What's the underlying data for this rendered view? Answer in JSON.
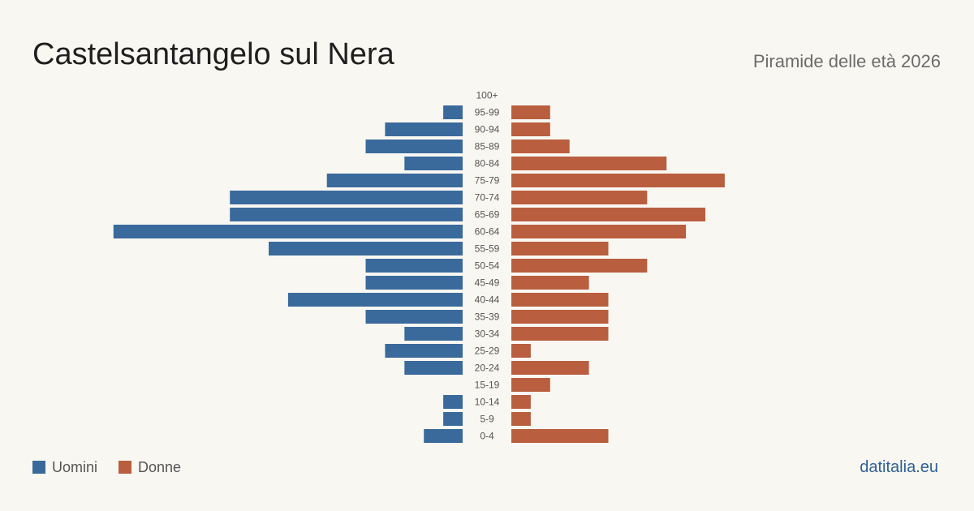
{
  "header": {
    "title": "Castelsantangelo  sul Nera",
    "subtitle": "Piramide delle età 2026"
  },
  "legend": {
    "men_label": "Uomini",
    "women_label": "Donne"
  },
  "source": {
    "label": "datitalia.eu"
  },
  "colors": {
    "men": "#3a6a9c",
    "women": "#b95e3e",
    "background": "#f9f7f2"
  },
  "chart_data": {
    "type": "bar",
    "orientation": "horizontal-population-pyramid",
    "title": "Castelsantangelo  sul Nera",
    "subtitle": "Piramide delle età 2026",
    "categories": [
      "100+",
      "95-99",
      "90-94",
      "85-89",
      "80-84",
      "75-79",
      "70-74",
      "65-69",
      "60-64",
      "55-59",
      "50-54",
      "45-49",
      "40-44",
      "35-39",
      "30-34",
      "25-29",
      "20-24",
      "15-19",
      "10-14",
      "5-9",
      "0-4"
    ],
    "series": [
      {
        "name": "Uomini",
        "side": "left",
        "values": [
          0,
          1,
          4,
          5,
          3,
          7,
          12,
          12,
          18,
          10,
          5,
          5,
          9,
          5,
          3,
          4,
          3,
          0,
          1,
          1,
          2
        ]
      },
      {
        "name": "Donne",
        "side": "right",
        "values": [
          0,
          2,
          2,
          3,
          8,
          11,
          7,
          10,
          9,
          5,
          7,
          4,
          5,
          5,
          5,
          1,
          4,
          2,
          1,
          1,
          5
        ]
      }
    ],
    "legend_position": "bottom-left",
    "grid": false
  }
}
